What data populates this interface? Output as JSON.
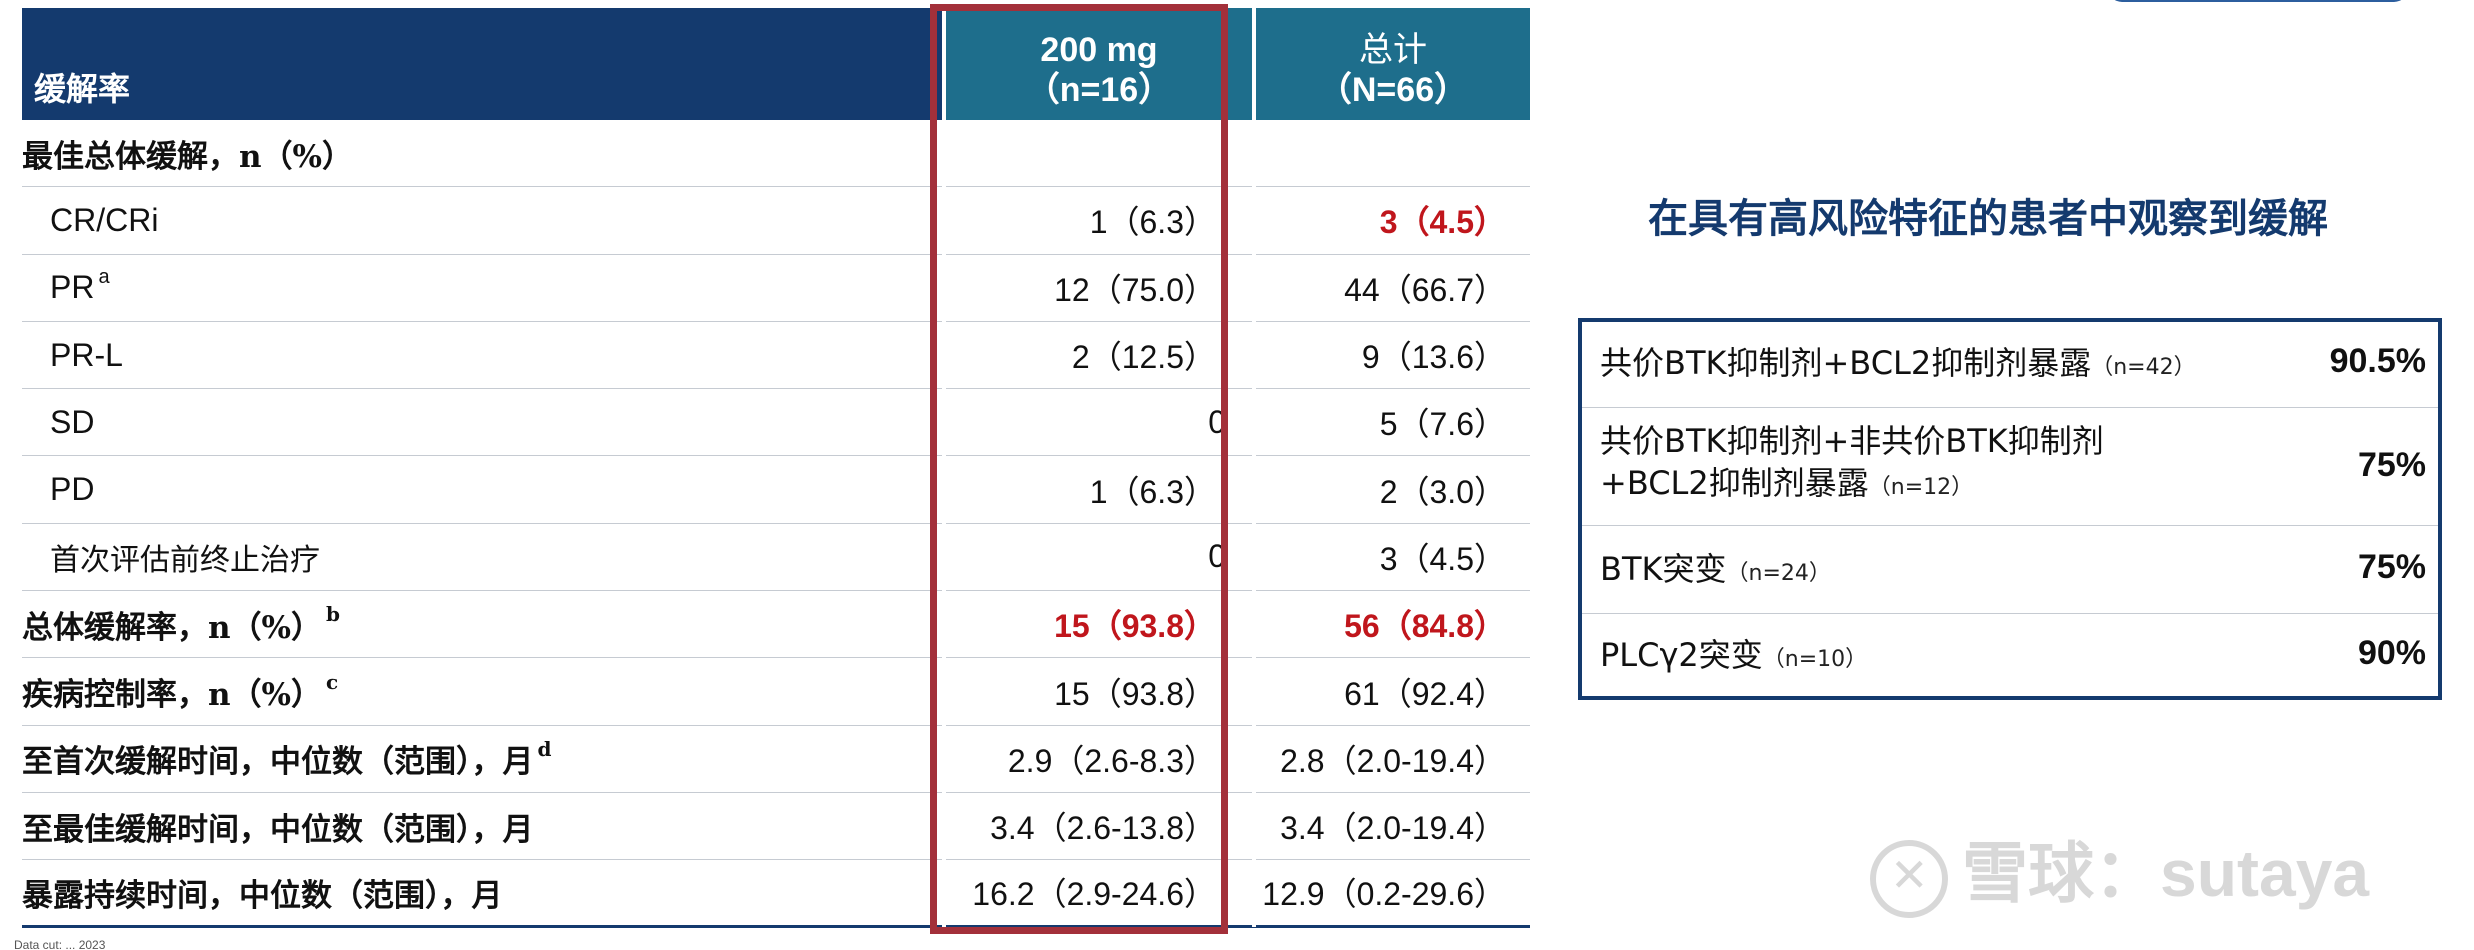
{
  "table": {
    "header_label": "缓解率",
    "col1_line1": "200 mg",
    "col1_line2": "（n=16）",
    "col2_line1": "总计",
    "col2_line2": "（N=66）",
    "rows": [
      {
        "label": "最佳总体缓解，n（%）",
        "sup": "",
        "v1": "",
        "v2": ""
      },
      {
        "label": "CR/CRi",
        "sup": "",
        "v1": "1（6.3）",
        "v2": "3（4.5）"
      },
      {
        "label": "PR",
        "sup": "a",
        "v1": "12（75.0）",
        "v2": "44（66.7）"
      },
      {
        "label": "PR-L",
        "sup": "",
        "v1": "2（12.5）",
        "v2": "9（13.6）"
      },
      {
        "label": "SD",
        "sup": "",
        "v1": "0",
        "v2": "5（7.6）"
      },
      {
        "label": "PD",
        "sup": "",
        "v1": "1（6.3）",
        "v2": "2（3.0）"
      },
      {
        "label": "首次评估前终止治疗",
        "sup": "",
        "v1": "0",
        "v2": "3（4.5）"
      },
      {
        "label": "总体缓解率，n（%）",
        "sup": "b",
        "v1": "15（93.8）",
        "v2": "56（84.8）"
      },
      {
        "label": "疾病控制率，n（%）",
        "sup": "c",
        "v1": "15（93.8）",
        "v2": "61（92.4）"
      },
      {
        "label": "至首次缓解时间，中位数（范围），月",
        "sup": "d",
        "v1": "2.9（2.6-8.3）",
        "v2": "2.8（2.0-19.4）"
      },
      {
        "label": "至最佳缓解时间，中位数（范围），月",
        "sup": "",
        "v1": "3.4（2.6-13.8）",
        "v2": "3.4（2.0-19.4）"
      },
      {
        "label": "暴露持续时间，中位数（范围），月",
        "sup": "",
        "v1": "16.2（2.9-24.6）",
        "v2": "12.9（0.2-29.6）"
      }
    ],
    "footnote": "Data cut: ... 2023"
  },
  "right": {
    "title": "在具有高风险特征的患者中观察到缓解",
    "rows": [
      {
        "line1": "共价BTK抑制剂+BCL2抑制剂暴露",
        "line2": "",
        "n": "（n=42）",
        "value": "90.5%"
      },
      {
        "line1": "共价BTK抑制剂+非共价BTK抑制剂",
        "line2": "+BCL2抑制剂暴露",
        "n": "（n=12）",
        "value": "75%"
      },
      {
        "line1": "BTK突变",
        "line2": "",
        "n": "（n=24）",
        "value": "75%"
      },
      {
        "line1": "PLCγ2突变",
        "line2": "",
        "n": "（n=10）",
        "value": "90%"
      }
    ]
  },
  "watermark": "雪球：sutaya",
  "colors": {
    "header_navy": "#143a6e",
    "header_teal": "#1e6e8c",
    "highlight": "#a3303a",
    "red_value": "#c0161c"
  }
}
